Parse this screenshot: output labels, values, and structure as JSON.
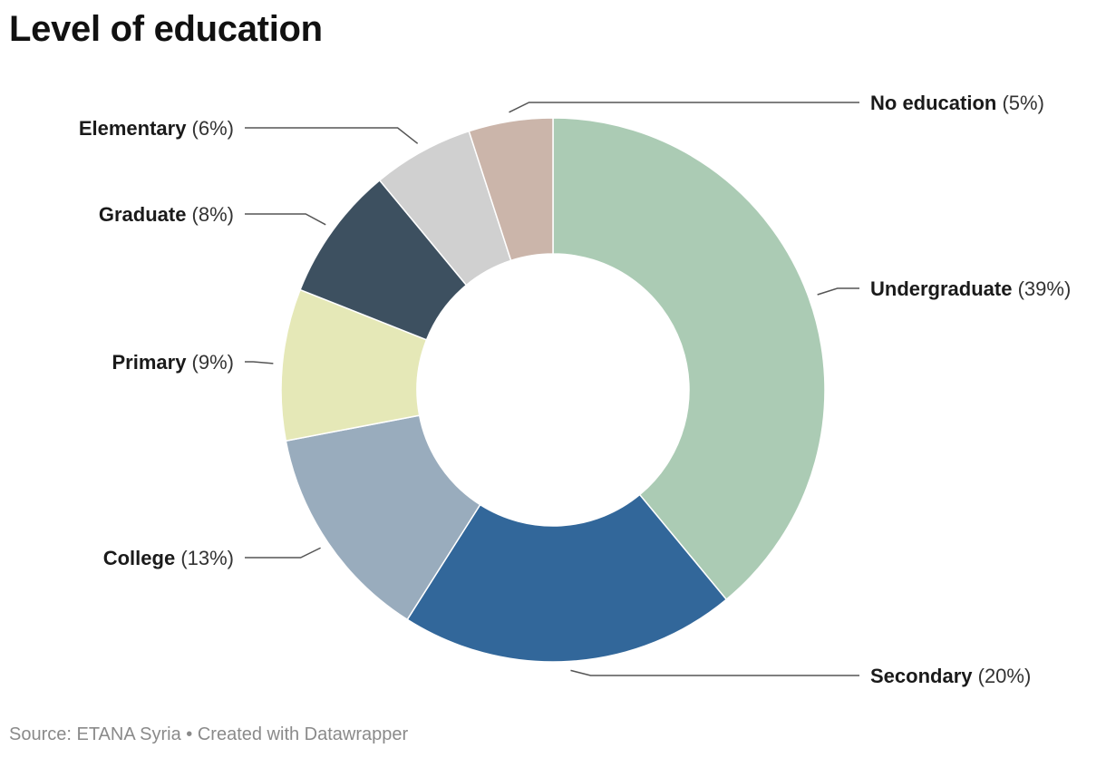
{
  "header": {
    "title": "Level of education"
  },
  "footer": {
    "source": "Source: ETANA Syria",
    "separator": "•",
    "credit": "Created with Datawrapper"
  },
  "chart_data": {
    "type": "pie",
    "donut": true,
    "title": "Level of education",
    "slices": [
      {
        "label": "Undergraduate",
        "value": 39,
        "display": "(39%)",
        "color": "#abcbb4"
      },
      {
        "label": "Secondary",
        "value": 20,
        "display": "(20%)",
        "color": "#32679a"
      },
      {
        "label": "College",
        "value": 13,
        "display": "(13%)",
        "color": "#99acbd"
      },
      {
        "label": "Primary",
        "value": 9,
        "display": "(9%)",
        "color": "#e5e8b7"
      },
      {
        "label": "Graduate",
        "value": 8,
        "display": "(8%)",
        "color": "#3d5060"
      },
      {
        "label": "Elementary",
        "value": 6,
        "display": "(6%)",
        "color": "#d0d0d0"
      },
      {
        "label": "No education",
        "value": 5,
        "display": "(5%)",
        "color": "#cbb5aa"
      }
    ]
  }
}
